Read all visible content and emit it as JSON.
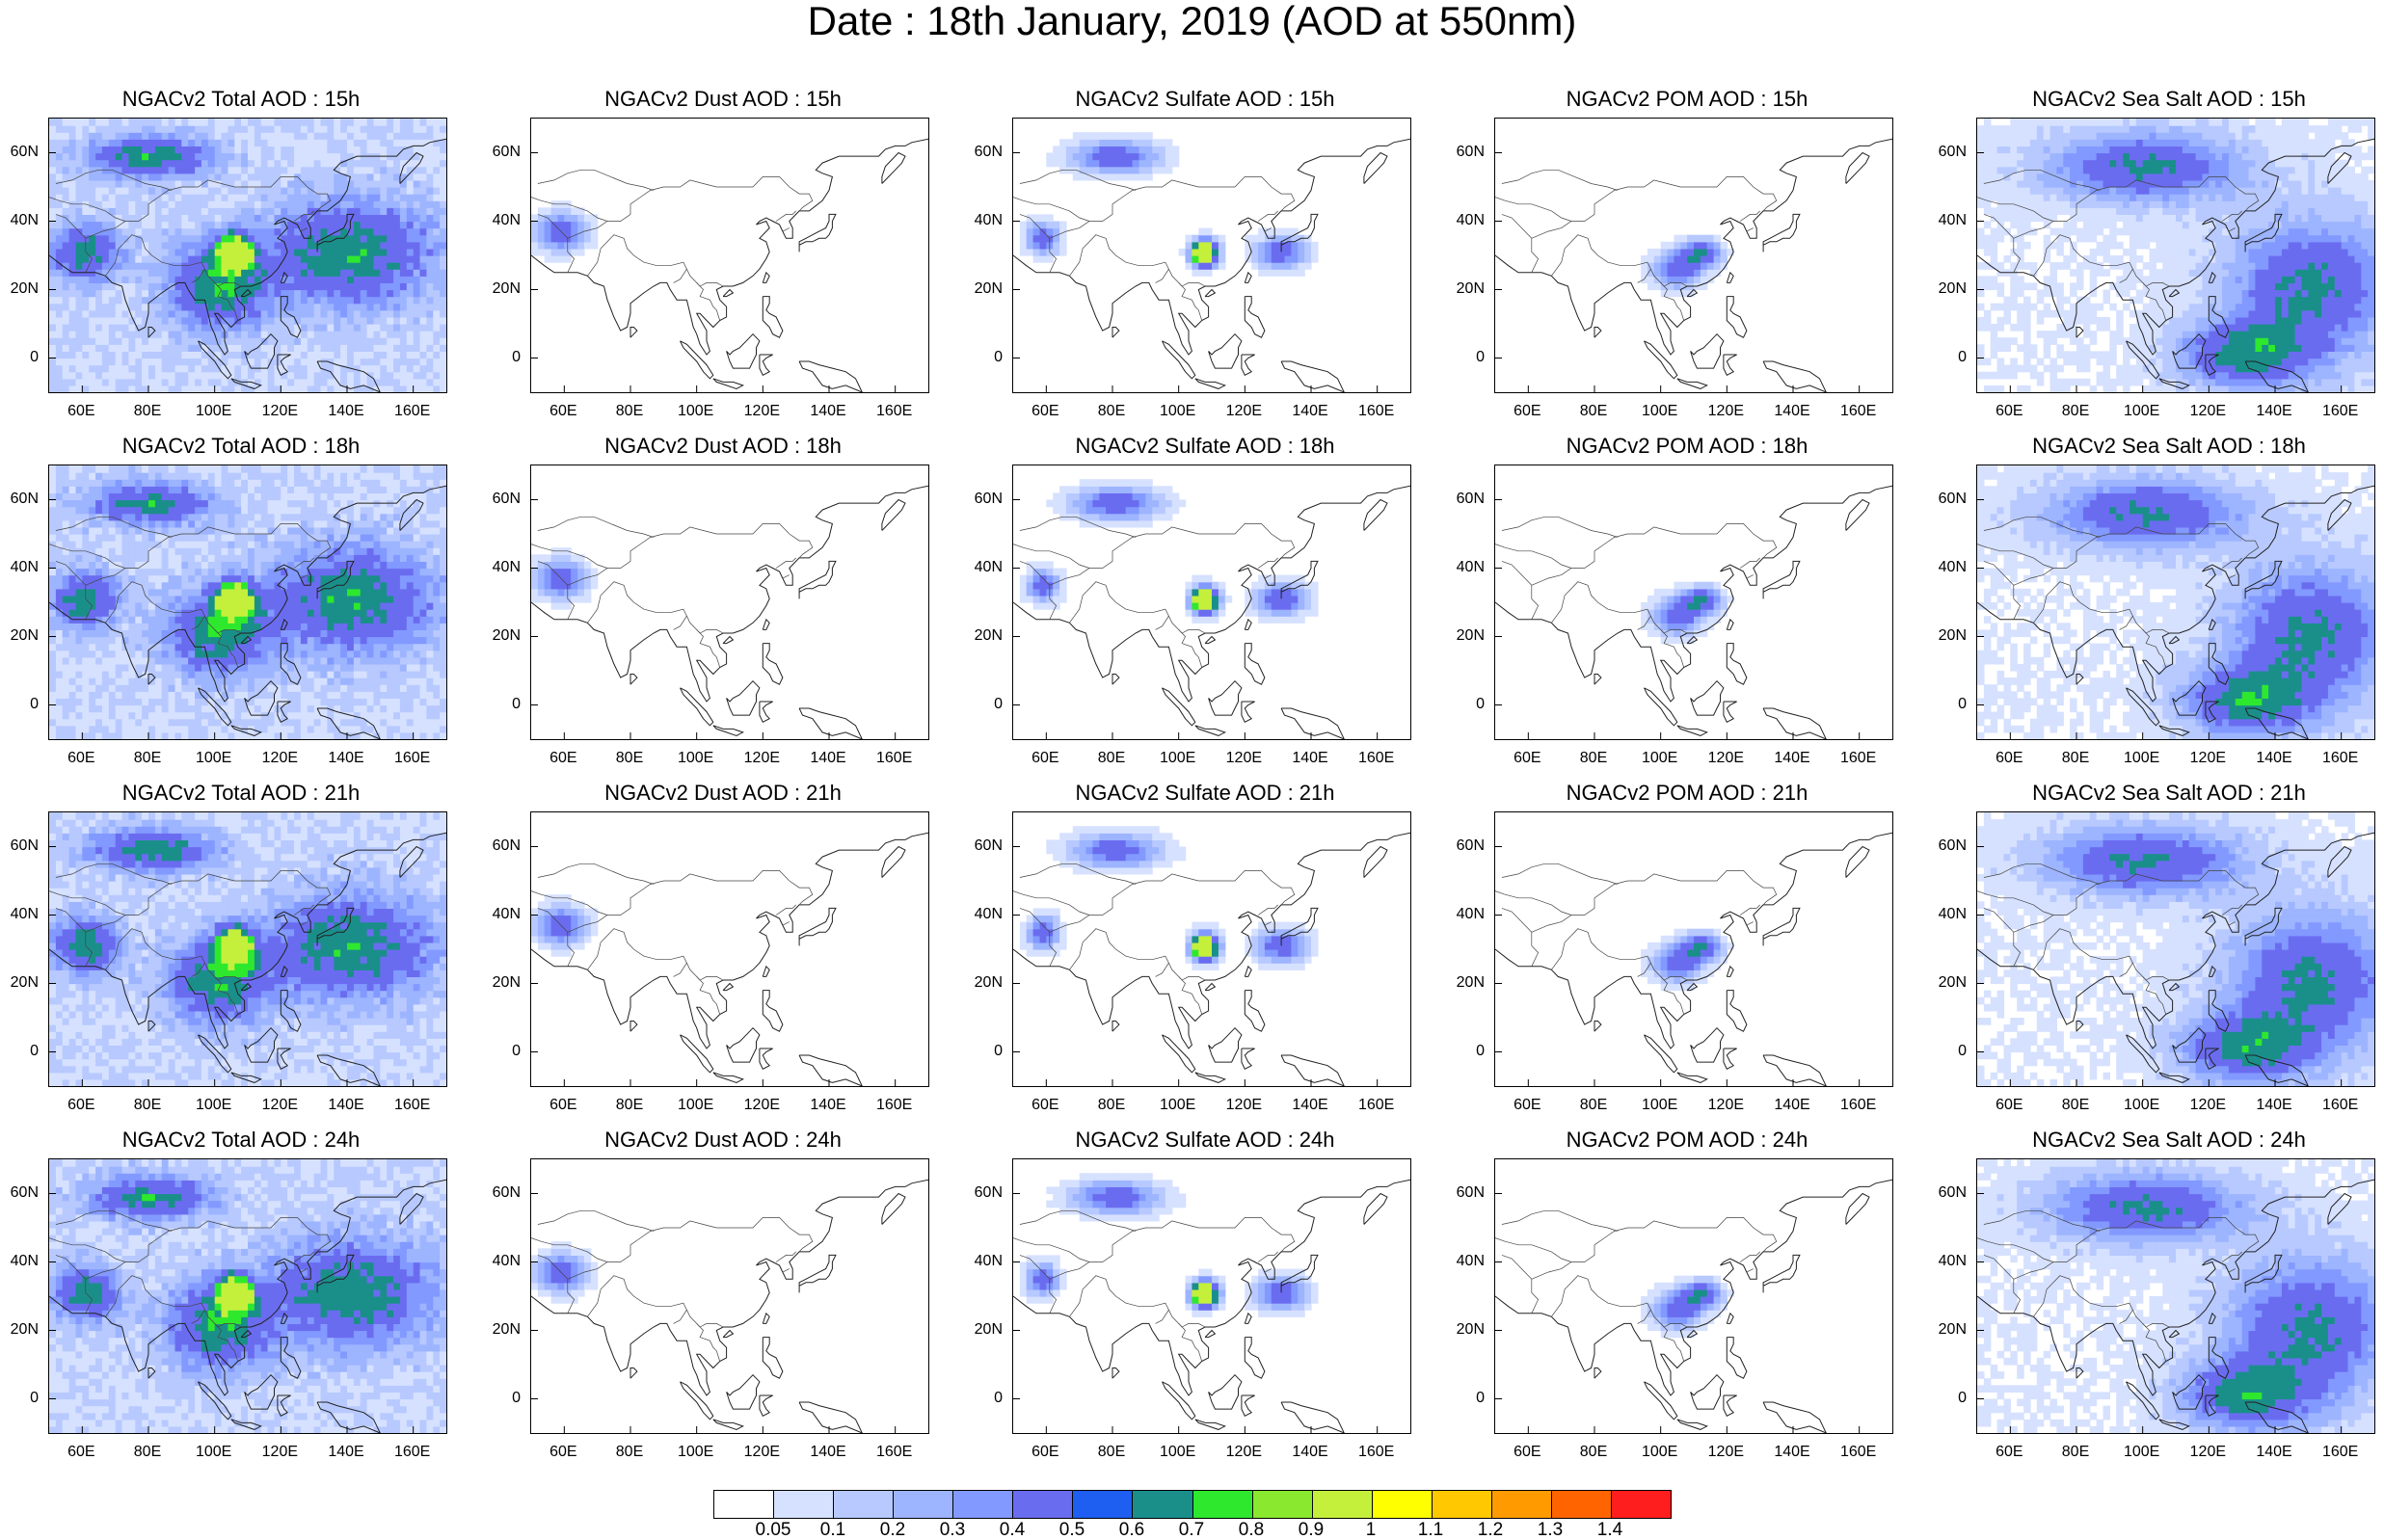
{
  "title": "Date : 18th January, 2019 (AOD at 550nm)",
  "map": {
    "lon_range": [
      50,
      170
    ],
    "lat_range": [
      -10,
      70
    ],
    "lon_ticks": [
      "60E",
      "80E",
      "100E",
      "120E",
      "140E",
      "160E"
    ],
    "lat_ticks": [
      "60N",
      "40N",
      "20N",
      "0"
    ],
    "variables": [
      "total",
      "dust",
      "sulfate",
      "pom",
      "seasalt"
    ],
    "hours": [
      "15h",
      "18h",
      "21h",
      "24h"
    ]
  },
  "panels": [
    {
      "title": "NGACv2 Total AOD : 15h",
      "variable": "total",
      "hour": "15h"
    },
    {
      "title": "NGACv2 Dust AOD : 15h",
      "variable": "dust",
      "hour": "15h"
    },
    {
      "title": "NGACv2 Sulfate AOD : 15h",
      "variable": "sulfate",
      "hour": "15h"
    },
    {
      "title": "NGACv2 POM AOD : 15h",
      "variable": "pom",
      "hour": "15h"
    },
    {
      "title": "NGACv2 Sea Salt AOD : 15h",
      "variable": "seasalt",
      "hour": "15h"
    },
    {
      "title": "NGACv2 Total AOD : 18h",
      "variable": "total",
      "hour": "18h"
    },
    {
      "title": "NGACv2 Dust AOD : 18h",
      "variable": "dust",
      "hour": "18h"
    },
    {
      "title": "NGACv2 Sulfate AOD : 18h",
      "variable": "sulfate",
      "hour": "18h"
    },
    {
      "title": "NGACv2 POM AOD : 18h",
      "variable": "pom",
      "hour": "18h"
    },
    {
      "title": "NGACv2 Sea Salt AOD : 18h",
      "variable": "seasalt",
      "hour": "18h"
    },
    {
      "title": "NGACv2 Total AOD : 21h",
      "variable": "total",
      "hour": "21h"
    },
    {
      "title": "NGACv2 Dust AOD : 21h",
      "variable": "dust",
      "hour": "21h"
    },
    {
      "title": "NGACv2 Sulfate AOD : 21h",
      "variable": "sulfate",
      "hour": "21h"
    },
    {
      "title": "NGACv2 POM AOD : 21h",
      "variable": "pom",
      "hour": "21h"
    },
    {
      "title": "NGACv2 Sea Salt AOD : 21h",
      "variable": "seasalt",
      "hour": "21h"
    },
    {
      "title": "NGACv2 Total AOD : 24h",
      "variable": "total",
      "hour": "24h"
    },
    {
      "title": "NGACv2 Dust AOD : 24h",
      "variable": "dust",
      "hour": "24h"
    },
    {
      "title": "NGACv2 Sulfate AOD : 24h",
      "variable": "sulfate",
      "hour": "24h"
    },
    {
      "title": "NGACv2 POM AOD : 24h",
      "variable": "pom",
      "hour": "24h"
    },
    {
      "title": "NGACv2 Sea Salt  AOD : 24h",
      "variable": "seasalt",
      "hour": "24h"
    }
  ],
  "colorbar": {
    "labels": [
      "0.05",
      "0.1",
      "0.2",
      "0.3",
      "0.4",
      "0.5",
      "0.6",
      "0.7",
      "0.8",
      "0.9",
      "1",
      "1.1",
      "1.2",
      "1.3",
      "1.4"
    ],
    "colors": [
      "#ffffff",
      "#d6e1ff",
      "#b7c9ff",
      "#9db4ff",
      "#8299ff",
      "#6a6cf0",
      "#1e5ef0",
      "#1a8f8a",
      "#2ee82e",
      "#8ae82e",
      "#c4f03c",
      "#ffff00",
      "#ffc800",
      "#ff9a00",
      "#ff6400",
      "#ff1e1e"
    ]
  }
}
